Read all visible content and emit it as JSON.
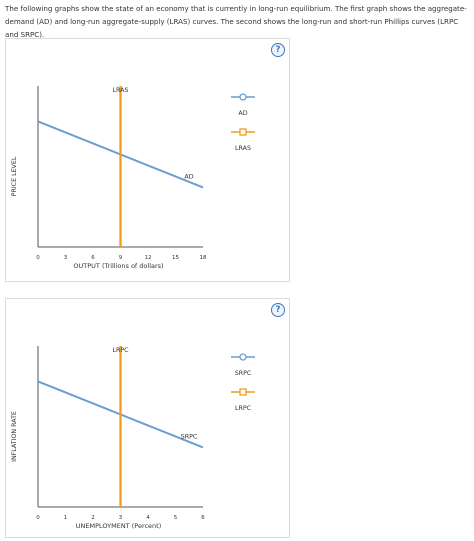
{
  "instructions": "The following graphs show the state of an economy that is currently in long-run equilibrium. The first graph shows the aggregate-demand (AD) and long-run aggregate-supply (LRAS) curves. The second shows the long-run and short-run Phillips curves (LRPC and SRPC).",
  "help_label": "?",
  "chart_data": [
    {
      "type": "line",
      "xlabel": "OUTPUT (Trillions of dollars)",
      "ylabel": "PRICE LEVEL",
      "xlim": [
        0,
        18
      ],
      "xticks": [
        "0",
        "3",
        "6",
        "9",
        "12",
        "15",
        "18"
      ],
      "series": [
        {
          "name": "AD",
          "color": "#6f9ccf",
          "marker": "circle",
          "x": [
            0,
            18
          ],
          "y": [
            0.78,
            0.37
          ]
        },
        {
          "name": "LRAS",
          "color": "#f39c1f",
          "marker": "square",
          "x": [
            9,
            9
          ],
          "y": [
            0,
            1
          ]
        }
      ],
      "curve_labels": [
        "LRAS",
        "AD"
      ],
      "legend_labels": [
        "AD",
        "LRAS"
      ]
    },
    {
      "type": "line",
      "xlabel": "UNEMPLOYMENT (Percent)",
      "ylabel": "INFLATION RATE",
      "xlim": [
        0,
        6
      ],
      "xticks": [
        "0",
        "1",
        "2",
        "3",
        "4",
        "5",
        "6"
      ],
      "series": [
        {
          "name": "SRPC",
          "color": "#6f9ccf",
          "marker": "circle",
          "x": [
            0,
            6
          ],
          "y": [
            0.78,
            0.37
          ]
        },
        {
          "name": "LRPC",
          "color": "#f39c1f",
          "marker": "square",
          "x": [
            3,
            3
          ],
          "y": [
            0,
            1
          ]
        }
      ],
      "curve_labels": [
        "LRPC",
        "SRPC"
      ],
      "legend_labels": [
        "SRPC",
        "LRPC"
      ]
    }
  ]
}
